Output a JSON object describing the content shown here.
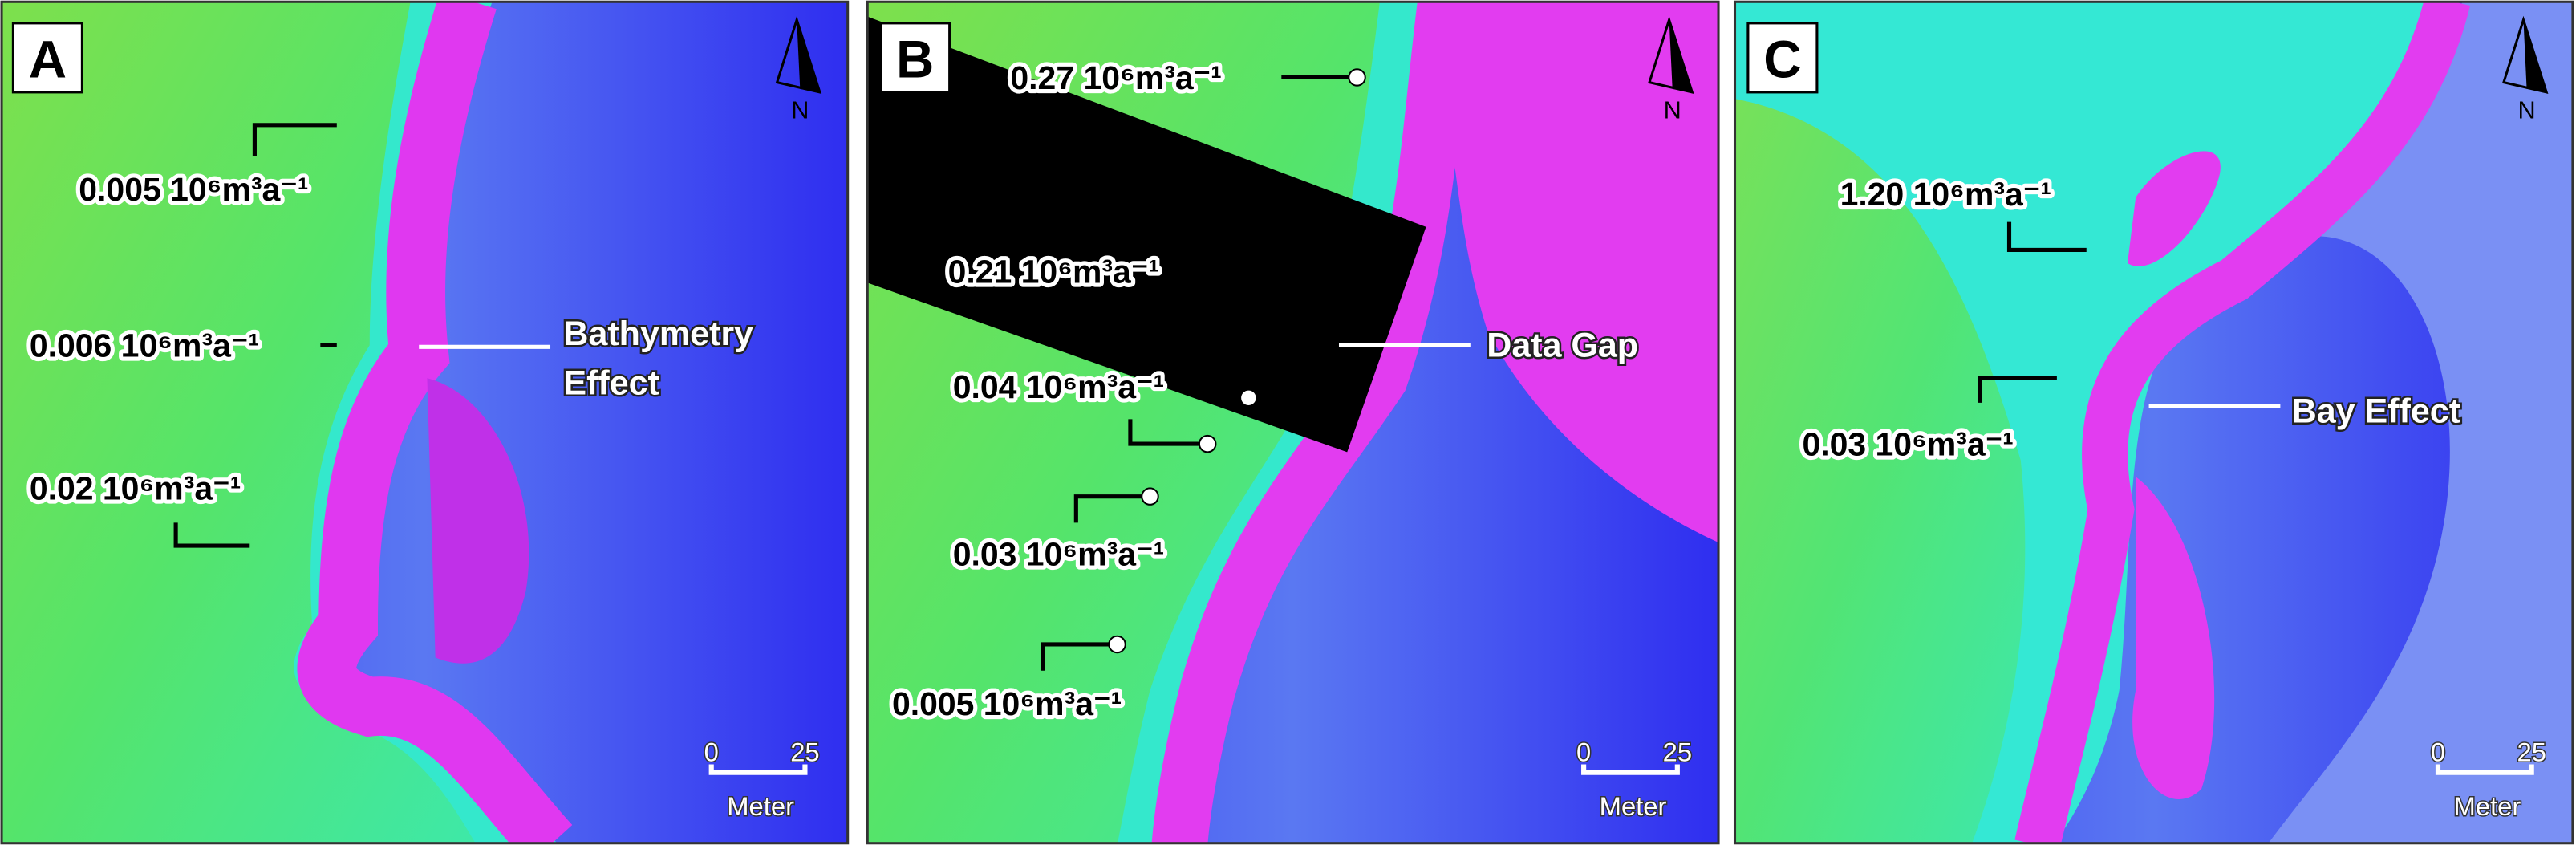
{
  "panels": [
    {
      "letter": "A",
      "north": "N",
      "scale": {
        "start": 0,
        "end": 25,
        "unit": "Meter"
      },
      "annotations": [
        {
          "text": "0.005 10⁶m³a⁻¹"
        },
        {
          "text": "0.006 10⁶m³a⁻¹"
        },
        {
          "text": "0.02 10⁶m³a⁻¹"
        }
      ],
      "callouts": [
        {
          "lines": [
            "Bathymetry",
            "Effect"
          ]
        }
      ]
    },
    {
      "letter": "B",
      "north": "N",
      "scale": {
        "start": 0,
        "end": 25,
        "unit": "Meter"
      },
      "annotations": [
        {
          "text": "0.27 10⁶m³a⁻¹"
        },
        {
          "text": "0.21 10⁶m³a⁻¹"
        },
        {
          "text": "0.04 10⁶m³a⁻¹"
        },
        {
          "text": "0.03 10⁶m³a⁻¹"
        },
        {
          "text": "0.005 10⁶m³a⁻¹"
        }
      ],
      "callouts": [
        {
          "lines": [
            "Data Gap"
          ]
        }
      ]
    },
    {
      "letter": "C",
      "north": "N",
      "scale": {
        "start": 0,
        "end": 25,
        "unit": "Meter"
      },
      "annotations": [
        {
          "text": "1.20 10⁶m³a⁻¹"
        },
        {
          "text": "0.03 10⁶m³a⁻¹"
        }
      ],
      "callouts": [
        {
          "lines": [
            "Bay Effect"
          ]
        }
      ]
    }
  ]
}
